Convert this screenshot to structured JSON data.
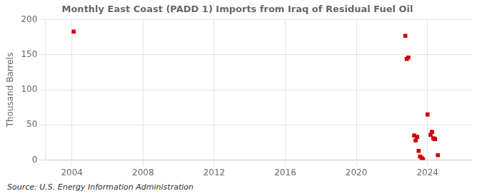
{
  "chart_data": {
    "type": "scatter",
    "title": "Monthly East Coast (PADD 1) Imports from Iraq of Residual Fuel Oil",
    "ylabel": "Thousand Barrels",
    "annotation": "Source: U.S. Energy Information Administration",
    "x": [
      2004.1,
      2022.75,
      2022.92,
      2022.83,
      2023.25,
      2023.33,
      2023.42,
      2023.5,
      2023.58,
      2023.67,
      2023.75,
      2024.0,
      2024.17,
      2024.25,
      2024.33,
      2024.42,
      2024.58
    ],
    "values": [
      183,
      177,
      146,
      144,
      35,
      28,
      33,
      13,
      5,
      3,
      1,
      65,
      36,
      40,
      31,
      30,
      7
    ],
    "color": "#cc0000",
    "marker": "square",
    "xlim": [
      2002.5,
      2026.5
    ],
    "ylim": [
      0,
      200
    ],
    "xticks": [
      2004,
      2008,
      2012,
      2016,
      2020,
      2024
    ],
    "yticks": [
      0,
      50,
      100,
      150,
      200
    ],
    "grid": true
  }
}
